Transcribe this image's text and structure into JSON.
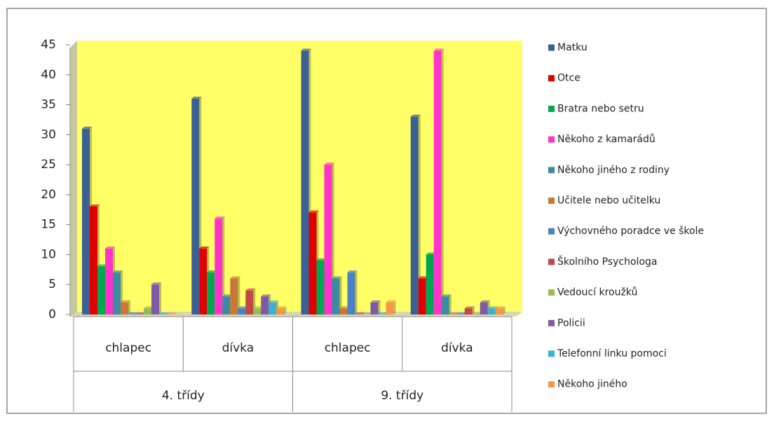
{
  "chart_data": {
    "type": "bar",
    "categories": [
      "chlapec",
      "dívka",
      "chlapec",
      "dívka"
    ],
    "category_groups": [
      "4. třídy",
      "9. třídy"
    ],
    "ylim": [
      0,
      45
    ],
    "yticks": [
      0,
      5,
      10,
      15,
      20,
      25,
      30,
      35,
      40,
      45
    ],
    "grid": false,
    "legend": "right",
    "series": [
      {
        "name": "Matku",
        "color": "#3b6096",
        "values": [
          31,
          36,
          44,
          33
        ]
      },
      {
        "name": "Otce",
        "color": "#e00000",
        "values": [
          18,
          11,
          17,
          6
        ]
      },
      {
        "name": "Bratra nebo setru",
        "color": "#00a651",
        "values": [
          8,
          7,
          9,
          10
        ]
      },
      {
        "name": "Někoho z kamarádů",
        "color": "#ff33cc",
        "values": [
          11,
          16,
          25,
          44
        ]
      },
      {
        "name": "Někoho jiného z rodiny",
        "color": "#3a8ba3",
        "values": [
          7,
          3,
          6,
          3
        ]
      },
      {
        "name": "Učitele nebo učitelku",
        "color": "#c8783a",
        "values": [
          2,
          6,
          1,
          0
        ]
      },
      {
        "name": "Výchovného poradce ve škole",
        "color": "#4a80c4",
        "values": [
          0,
          1,
          7,
          0
        ]
      },
      {
        "name": "Školního Psychologa",
        "color": "#c04848",
        "values": [
          0,
          4,
          0,
          1
        ]
      },
      {
        "name": "Vedoucí kroužků",
        "color": "#9bbb59",
        "values": [
          1,
          1,
          0,
          0
        ]
      },
      {
        "name": "Policii",
        "color": "#7e5aa8",
        "values": [
          5,
          3,
          2,
          2
        ]
      },
      {
        "name": "Telefonní linku pomoci",
        "color": "#3ab0d4",
        "values": [
          0,
          2,
          0,
          1
        ]
      },
      {
        "name": "Někoho jiného",
        "color": "#f79646",
        "values": [
          0,
          1,
          2,
          1
        ]
      }
    ]
  }
}
